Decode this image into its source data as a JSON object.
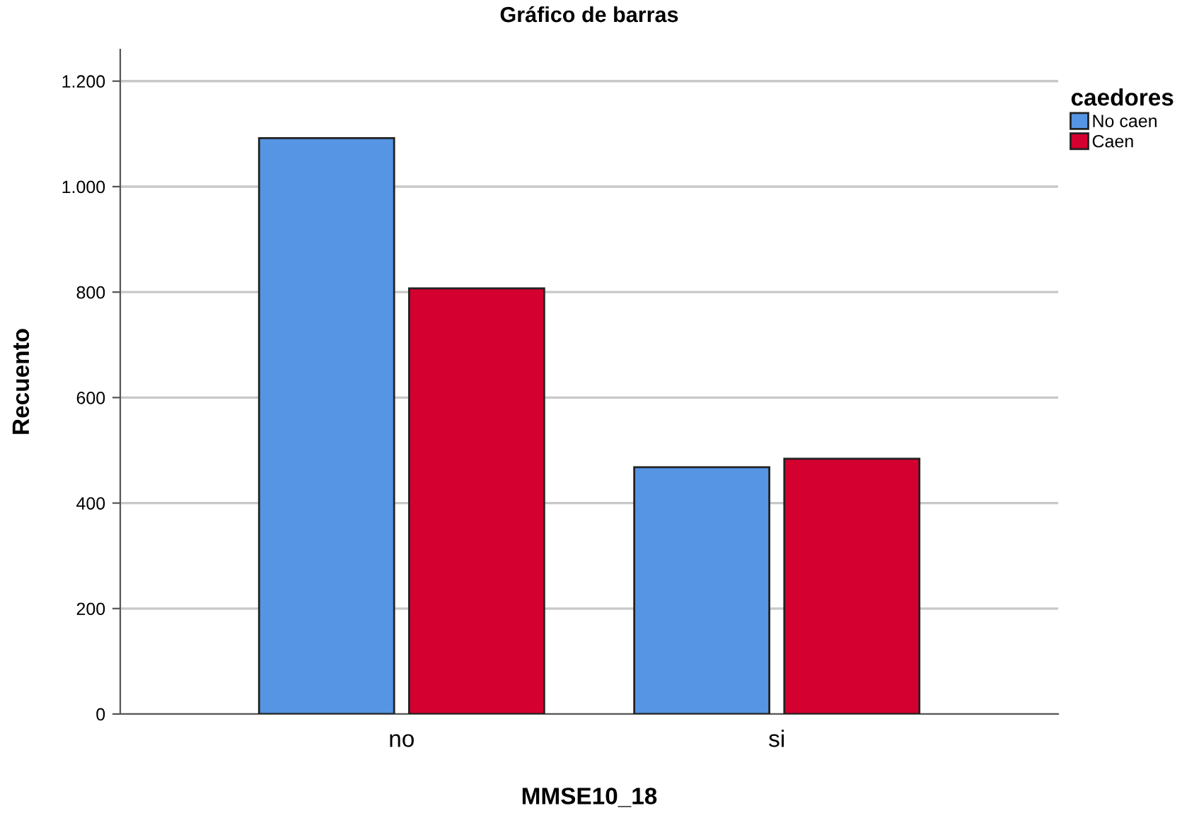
{
  "chart_data": {
    "type": "bar",
    "title": "Gráfico de barras",
    "xlabel": "MMSE10_18",
    "ylabel": "Recuento",
    "legend_title": "caedores",
    "categories": [
      "no",
      "si"
    ],
    "series": [
      {
        "name": "No caen",
        "color": "#5595e3",
        "values": [
          1092,
          468
        ]
      },
      {
        "name": "Caen",
        "color": "#d40030",
        "values": [
          807,
          484
        ]
      }
    ],
    "ylim": [
      0,
      1260
    ],
    "yticks": [
      0,
      200,
      400,
      600,
      800,
      {
        "value": 1000,
        "label": "1.000"
      },
      {
        "value": 1200,
        "label": "1.200"
      }
    ],
    "grid": "y",
    "legend": "top right"
  }
}
